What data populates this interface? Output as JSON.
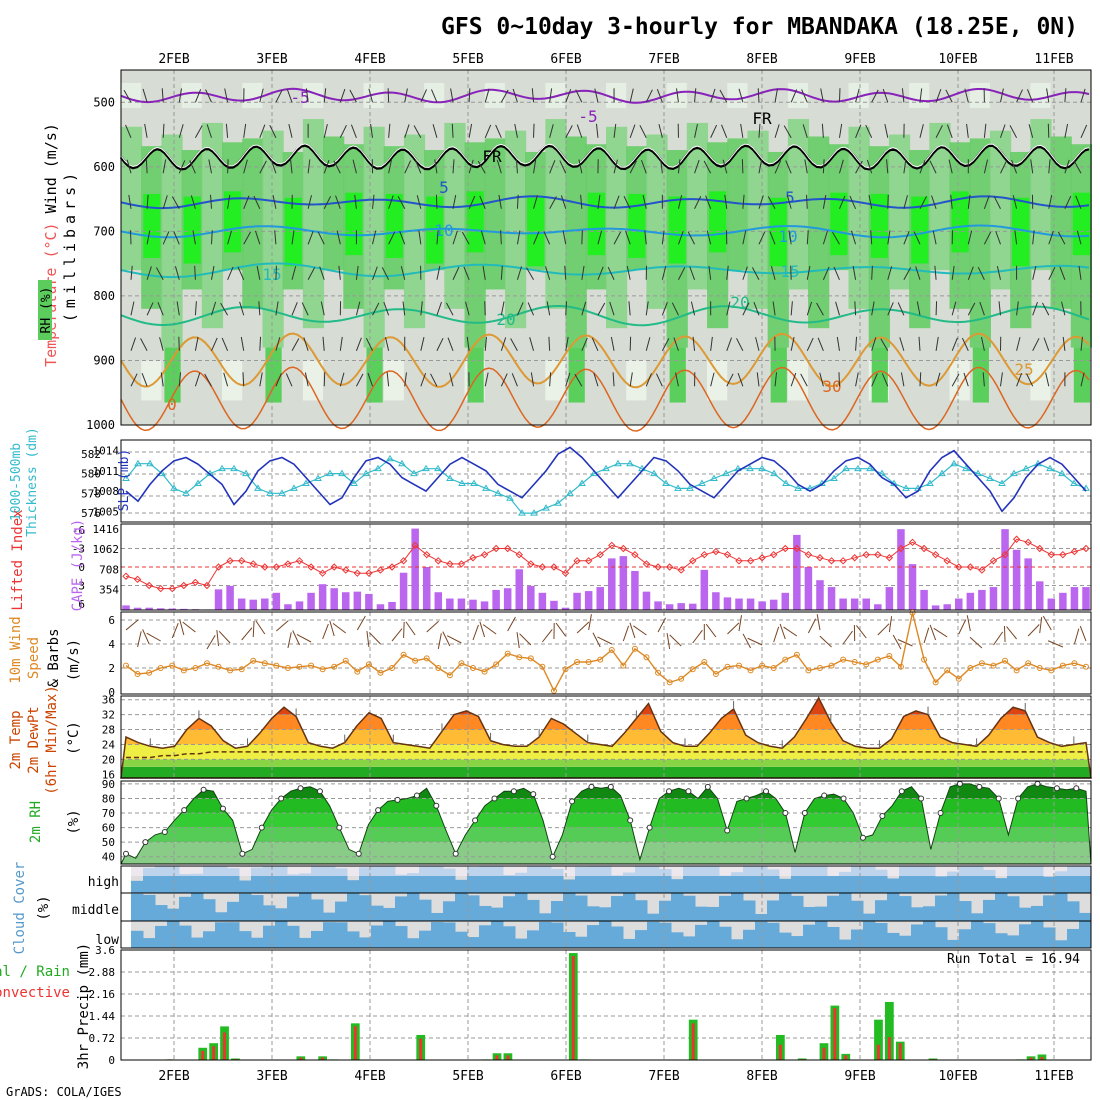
{
  "title": "GFS 0~10day 3-hourly for MBANDAKA (18.25E, 0N)",
  "footer": "GrADS: COLA/IGES",
  "dates": [
    "2FEB",
    "3FEB",
    "4FEB",
    "5FEB",
    "6FEB",
    "7FEB",
    "8FEB",
    "9FEB",
    "10FEB",
    "11FEB"
  ],
  "panels": {
    "upper": {
      "labels": [
        "Wind (m/s)",
        "Temperature (°C)",
        "(millibars)",
        "RH (%)"
      ],
      "yticks": [
        500,
        600,
        700,
        800,
        900,
        1000
      ],
      "contour_labels": [
        "-5",
        "-5",
        "FR",
        "FR",
        "5",
        "5",
        "10",
        "10",
        "15",
        "15",
        "20",
        "20",
        "25",
        "30",
        "0"
      ]
    },
    "thickness": {
      "labels": [
        "1000-500mb",
        "Thickness (dm)",
        "SLP (mb)"
      ],
      "left_ticks": [
        582,
        580,
        578,
        576
      ],
      "right_ticks": [
        1014,
        1011,
        1008,
        1005
      ]
    },
    "cape": {
      "labels": [
        "Lifted Index",
        "CAPE (J/kg)"
      ],
      "left_ticks": [
        -6,
        -3,
        0,
        3,
        6
      ],
      "right_ticks": [
        1416,
        1062,
        708,
        354
      ]
    },
    "wind10m": {
      "labels": [
        "10m Wind",
        "Speed",
        "& Barbs",
        "(m/s)"
      ],
      "yticks": [
        0,
        2,
        4,
        6
      ]
    },
    "temp2m": {
      "labels": [
        "2m Temp",
        "2m DewPt",
        "(6hr Min/Max)",
        "(°C)"
      ],
      "yticks": [
        16,
        20,
        24,
        28,
        32,
        36
      ]
    },
    "rh2m": {
      "labels": [
        "2m RH",
        "(%)"
      ],
      "yticks": [
        40,
        50,
        60,
        70,
        80,
        90
      ]
    },
    "cloud": {
      "labels": [
        "Cloud Cover",
        "(%)"
      ],
      "levels": [
        "high",
        "middle",
        "low"
      ]
    },
    "precip": {
      "labels": [
        "Total / Rain",
        "Convective",
        "3hr Precip (mm)"
      ],
      "yticks": [
        0,
        0.72,
        1.44,
        2.16,
        2.88,
        3.6
      ],
      "run_total": "Run Total = 16.94"
    }
  },
  "colors": {
    "green": "#22bb22",
    "convective": "#ee3333",
    "cape_bar": "#bb66ee",
    "cloud": "#66aad9",
    "slp": "#2233bb",
    "thick": "#33bbcc",
    "wind": "#dd8822"
  },
  "chart_data": [
    {
      "type": "area",
      "title": "Upper air RH / Temperature / Wind",
      "ylabel": "millibars",
      "ylim": [
        1000,
        450
      ],
      "temperature_contours": [
        -5,
        0,
        5,
        10,
        15,
        20,
        25,
        30
      ],
      "freezing_level_mb_approx": 580
    },
    {
      "type": "line",
      "title": "1000-500mb Thickness and SLP",
      "x_unit": "3-hour step from 1FEB12Z",
      "series": [
        {
          "name": "SLP (mb)",
          "axis": "right",
          "values": [
            1008,
            1006.5,
            1009,
            1011,
            1012.5,
            1013,
            1012,
            1010.5,
            1009,
            1006,
            1008,
            1011,
            1012.5,
            1013,
            1012,
            1010,
            1008,
            1006,
            1007,
            1010,
            1012.5,
            1013,
            1012,
            1010,
            1009,
            1008,
            1010,
            1012,
            1013,
            1012,
            1011,
            1009,
            1008,
            1007,
            1009,
            1011,
            1013.5,
            1014.5,
            1013,
            1011,
            1009,
            1007,
            1009,
            1011,
            1013,
            1012.5,
            1011,
            1009,
            1008,
            1007,
            1009,
            1011,
            1012,
            1013,
            1012.5,
            1011,
            1009,
            1008,
            1009,
            1011,
            1012.5,
            1013,
            1012,
            1010,
            1009,
            1007,
            1008,
            1011,
            1013,
            1014,
            1012,
            1010,
            1008,
            1005,
            1007,
            1010,
            1012,
            1013,
            1012,
            1010,
            1008
          ]
        },
        {
          "name": "Thickness (dm)",
          "axis": "left",
          "values": [
            579.5,
            581,
            581,
            580,
            578.5,
            578,
            579,
            580,
            580.5,
            580.5,
            580,
            578.5,
            578,
            578,
            578.5,
            579,
            579.5,
            580,
            580,
            579,
            580,
            580.5,
            581.5,
            581,
            580,
            580.5,
            580.5,
            579.5,
            579,
            579,
            578.5,
            578,
            577.5,
            576,
            576,
            576.5,
            577,
            578,
            579,
            580,
            580.5,
            581,
            581,
            580.5,
            580,
            579,
            578.5,
            578.5,
            579,
            579.5,
            580,
            580.5,
            580.5,
            580.5,
            580,
            579,
            578.5,
            578.5,
            579,
            579.5,
            580.5,
            580.5,
            580.5,
            580,
            579,
            578.5,
            578.5,
            579,
            580,
            581,
            580.5,
            580,
            579.5,
            579,
            580,
            580.5,
            581,
            580.5,
            580,
            579,
            578.5
          ]
        }
      ]
    },
    {
      "type": "bar",
      "title": "Lifted Index and CAPE",
      "series": [
        {
          "name": "CAPE (J/kg)",
          "axis": "right",
          "values": [
            80,
            40,
            40,
            30,
            25,
            20,
            15,
            10,
            360,
            420,
            200,
            180,
            200,
            300,
            100,
            150,
            300,
            450,
            380,
            310,
            320,
            280,
            100,
            140,
            650,
            1420,
            750,
            310,
            200,
            200,
            180,
            150,
            350,
            380,
            710,
            420,
            300,
            160,
            40,
            300,
            330,
            400,
            900,
            940,
            680,
            320,
            150,
            100,
            120,
            110,
            700,
            310,
            220,
            200,
            200,
            150,
            180,
            300,
            1310,
            750,
            520,
            400,
            200,
            200,
            200,
            100,
            400,
            1410,
            800,
            350,
            80,
            100,
            200,
            300,
            350,
            400,
            1410,
            1050,
            900,
            500,
            200,
            300,
            400,
            400
          ]
        },
        {
          "name": "Lifted Index",
          "axis": "left",
          "values": [
            1.5,
            2,
            3,
            3.5,
            3.5,
            3,
            2.5,
            3,
            0,
            -1,
            -1,
            -0.5,
            0,
            0,
            -0.5,
            -1,
            0,
            1,
            0,
            0.5,
            1,
            1,
            0.5,
            0,
            -1,
            -3.5,
            -2,
            -1,
            -0.5,
            -0.5,
            -1.5,
            -2,
            -3,
            -3,
            -2,
            -0.5,
            0,
            0,
            1,
            -1,
            -1,
            -2,
            -3.5,
            -3,
            -2,
            -0.5,
            0,
            0,
            0.5,
            -1,
            -2,
            -2.5,
            -2,
            -1,
            -1,
            -1.5,
            -2,
            -3,
            -3,
            -2,
            -1.5,
            -1,
            -1,
            -1.5,
            -2,
            -2,
            -1.5,
            -3,
            -4,
            -3,
            -2,
            -1,
            0,
            0,
            0.5,
            -1,
            -2,
            -4.5,
            -4,
            -3,
            -2,
            -2,
            -2.5,
            -3
          ]
        }
      ]
    },
    {
      "type": "line",
      "title": "10m Wind Speed & Barbs",
      "ylabel": "m/s",
      "ylim": [
        0,
        6.5
      ],
      "series": [
        {
          "name": "10m wind speed",
          "values": [
            2.2,
            1.5,
            1.6,
            2.0,
            2.2,
            1.8,
            2.0,
            2.4,
            2.1,
            1.8,
            1.9,
            2.6,
            2.4,
            2.2,
            2.0,
            2.1,
            2.2,
            1.9,
            2.1,
            2.6,
            1.7,
            2.3,
            1.6,
            2.0,
            3.1,
            2.6,
            2.8,
            2.0,
            1.4,
            2.4,
            2.0,
            1.7,
            2.3,
            3.2,
            2.9,
            2.8,
            2.1,
            0.1,
            1.9,
            2.5,
            2.5,
            2.7,
            3.5,
            2.2,
            3.6,
            2.9,
            1.6,
            0.8,
            1.1,
            1.9,
            2.5,
            1.5,
            2.1,
            2.2,
            1.8,
            2.2,
            2.0,
            2.7,
            3.1,
            1.8,
            2.0,
            2.2,
            2.7,
            2.5,
            2.3,
            2.7,
            3.0,
            2.1,
            6.6,
            2.7,
            0.8,
            1.8,
            1.1,
            2.0,
            2.4,
            2.2,
            2.6,
            1.8,
            2.4,
            2.0,
            1.8,
            2.2,
            2.4,
            2.1
          ]
        }
      ]
    },
    {
      "type": "area",
      "title": "2m Temp and DewPt",
      "ylabel": "°C",
      "ylim": [
        15,
        37
      ],
      "series": [
        {
          "name": "2m Temp",
          "values": [
            26,
            24.5,
            23.5,
            23,
            23.5,
            28,
            31,
            29,
            25,
            23,
            23.5,
            27,
            31,
            34,
            31.5,
            24.5,
            23.5,
            23,
            24.5,
            29,
            32.5,
            31,
            24.5,
            24,
            23.5,
            23,
            27.5,
            32,
            33,
            31.5,
            25,
            24,
            23.5,
            23.5,
            26,
            31,
            29.5,
            27,
            24.5,
            24,
            23.5,
            27,
            31,
            35,
            27.5,
            24.5,
            23.5,
            23.5,
            27,
            31,
            33.5,
            26.5,
            24.5,
            23.5,
            23,
            26,
            31,
            36.5,
            30,
            25,
            23.5,
            23,
            23,
            25.5,
            31.5,
            33,
            32,
            26,
            24.5,
            24,
            23.5,
            26.5,
            31,
            34,
            33,
            26,
            24.5,
            23.5,
            24,
            24.5
          ]
        },
        {
          "name": "2m DewPt",
          "values": [
            20.5,
            20.5,
            20.5,
            21,
            21,
            21.5,
            21.5,
            22,
            22,
            22,
            22,
            22,
            22,
            22,
            22,
            22,
            22,
            22,
            22,
            22,
            22,
            22,
            22,
            22,
            22,
            22,
            22,
            22,
            22,
            22,
            22,
            22,
            22,
            22,
            22,
            22,
            22,
            22,
            22,
            22,
            22,
            22,
            22,
            22,
            22,
            22,
            22,
            22,
            22,
            22,
            22,
            22,
            22,
            22,
            22,
            22,
            22,
            22,
            22,
            22,
            22,
            22,
            22,
            22,
            22,
            22,
            22,
            22,
            22,
            22,
            22,
            22,
            22,
            22,
            22,
            22,
            22,
            22,
            22,
            22
          ]
        }
      ]
    },
    {
      "type": "area",
      "title": "2m RH",
      "ylabel": "%",
      "ylim": [
        35,
        92
      ],
      "series": [
        {
          "name": "2m RH",
          "values": [
            42,
            39,
            50,
            55,
            57,
            65,
            72,
            80,
            86,
            85,
            73,
            65,
            42,
            45,
            60,
            72,
            80,
            85,
            87,
            88,
            85,
            75,
            60,
            45,
            42,
            62,
            72,
            78,
            79,
            80,
            82,
            87,
            75,
            58,
            42,
            55,
            65,
            75,
            80,
            85,
            85,
            87,
            83,
            65,
            40,
            55,
            78,
            85,
            88,
            87,
            88,
            82,
            65,
            38,
            60,
            80,
            85,
            87,
            85,
            80,
            88,
            80,
            58,
            78,
            80,
            82,
            85,
            80,
            70,
            43,
            70,
            80,
            82,
            83,
            80,
            70,
            53,
            55,
            68,
            75,
            85,
            88,
            80,
            45,
            70,
            88,
            90,
            90,
            88,
            87,
            80,
            55,
            80,
            88,
            90,
            88,
            87,
            86,
            87,
            85
          ]
        }
      ]
    },
    {
      "type": "bar",
      "title": "Cloud Cover",
      "categories": [
        "high",
        "middle",
        "low"
      ],
      "ylabel": "%"
    },
    {
      "type": "bar",
      "title": "3hr Precip",
      "ylabel": "mm",
      "ylim": [
        0,
        3.6
      ],
      "series": [
        {
          "name": "Total",
          "values": [
            0,
            0,
            0,
            0,
            0.02,
            0,
            0,
            0.4,
            0.55,
            1.1,
            0.05,
            0,
            0,
            0,
            0,
            0,
            0.12,
            0,
            0.12,
            0.02,
            0,
            1.2,
            0,
            0,
            0,
            0,
            0,
            0.82,
            0,
            0,
            0,
            0,
            0,
            0.02,
            0.22,
            0.22,
            0,
            0,
            0,
            0,
            0,
            3.5,
            0.02,
            0,
            0,
            0,
            0,
            0,
            0,
            0,
            0,
            0,
            1.32,
            0,
            0,
            0,
            0,
            0,
            0,
            0,
            0.82,
            0,
            0.05,
            0,
            0.55,
            1.78,
            0.2,
            0,
            0,
            1.32,
            1.9,
            0.6,
            0,
            0,
            0.05,
            0,
            0,
            0,
            0,
            0,
            0,
            0,
            0.02,
            0.12,
            0.18,
            0,
            0,
            0,
            0
          ]
        },
        {
          "name": "Convective",
          "values": [
            0,
            0,
            0,
            0,
            0.02,
            0,
            0,
            0.3,
            0.45,
            0.9,
            0.03,
            0,
            0,
            0,
            0,
            0,
            0.08,
            0,
            0.08,
            0.01,
            0,
            1.1,
            0,
            0,
            0,
            0,
            0,
            0.7,
            0,
            0,
            0,
            0,
            0,
            0.01,
            0.15,
            0.15,
            0,
            0,
            0,
            0,
            0,
            3.4,
            0.01,
            0,
            0,
            0,
            0,
            0,
            0,
            0,
            0,
            0,
            1.2,
            0,
            0,
            0,
            0,
            0,
            0,
            0,
            0.5,
            0,
            0.03,
            0,
            0.4,
            1.7,
            0.15,
            0,
            0,
            0.5,
            0.75,
            0.55,
            0,
            0,
            0.03,
            0,
            0,
            0,
            0,
            0,
            0,
            0,
            0.01,
            0.08,
            0.1,
            0,
            0,
            0,
            0
          ]
        }
      ]
    }
  ]
}
